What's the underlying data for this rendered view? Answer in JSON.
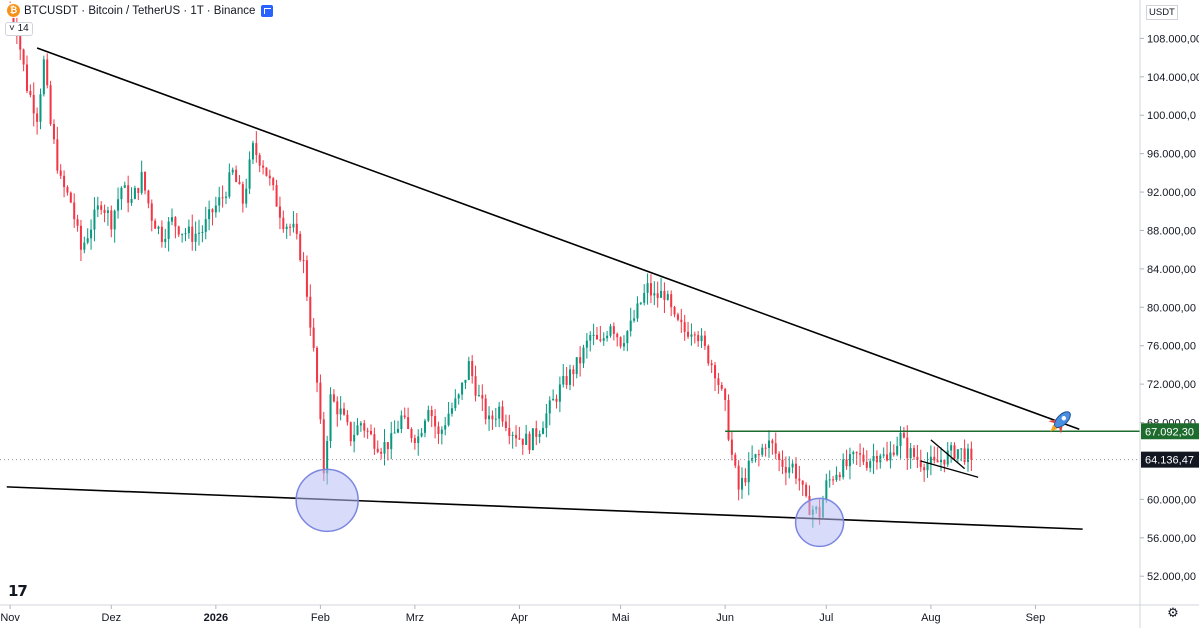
{
  "header": {
    "symbol": "BTCUSDT · Bitcoin / TetherUS · 1T · Binance",
    "indicator_toggle": "˅ 14",
    "currency": "USDT"
  },
  "colors": {
    "up": "#089981",
    "down": "#f23645",
    "trendline": "#000000",
    "resistance": "#1e6b2e",
    "highlight_fill": "#b8c0f5",
    "highlight_stroke": "#7b86e0",
    "last_price_tag": "#131722",
    "resistance_tag": "#1e6b2e"
  },
  "chart_data": {
    "type": "candlestick",
    "ylim": [
      49000,
      112000
    ],
    "y_ticks": [
      {
        "value": 108000,
        "label": "108.000,00"
      },
      {
        "value": 104000,
        "label": "104.000,00"
      },
      {
        "value": 100000,
        "label": "100.000,0"
      },
      {
        "value": 96000,
        "label": "96.000,00"
      },
      {
        "value": 92000,
        "label": "92.000,00"
      },
      {
        "value": 88000,
        "label": "88.000,00"
      },
      {
        "value": 84000,
        "label": "84.000,00"
      },
      {
        "value": 80000,
        "label": "80.000,00"
      },
      {
        "value": 76000,
        "label": "76.000,00"
      },
      {
        "value": 72000,
        "label": "72.000,00"
      },
      {
        "value": 68000,
        "label": "68.000,00"
      },
      {
        "value": 60000,
        "label": "60.000,00"
      },
      {
        "value": 56000,
        "label": "56.000,00"
      },
      {
        "value": 52000,
        "label": "52.000,00"
      }
    ],
    "x_ticks": [
      {
        "day": 0,
        "label": "Nov",
        "bold": false
      },
      {
        "day": 30,
        "label": "Dez",
        "bold": false
      },
      {
        "day": 61,
        "label": "2026",
        "bold": true
      },
      {
        "day": 92,
        "label": "Feb",
        "bold": false
      },
      {
        "day": 120,
        "label": "Mrz",
        "bold": false
      },
      {
        "day": 151,
        "label": "Apr",
        "bold": false
      },
      {
        "day": 181,
        "label": "Mai",
        "bold": false
      },
      {
        "day": 212,
        "label": "Jun",
        "bold": false
      },
      {
        "day": 242,
        "label": "Jul",
        "bold": false
      },
      {
        "day": 273,
        "label": "Aug",
        "bold": false
      },
      {
        "day": 304,
        "label": "Sep",
        "bold": false
      }
    ],
    "x_range_days": [
      -3,
      335
    ],
    "price_path": [
      [
        0,
        110500
      ],
      [
        2,
        109000
      ],
      [
        5,
        103000
      ],
      [
        8,
        100000
      ],
      [
        10,
        105500
      ],
      [
        12,
        99000
      ],
      [
        15,
        93000
      ],
      [
        18,
        91000
      ],
      [
        21,
        86000
      ],
      [
        24,
        88500
      ],
      [
        27,
        91000
      ],
      [
        30,
        89000
      ],
      [
        33,
        92500
      ],
      [
        36,
        91000
      ],
      [
        39,
        93500
      ],
      [
        42,
        89500
      ],
      [
        45,
        87500
      ],
      [
        48,
        89000
      ],
      [
        51,
        88000
      ],
      [
        54,
        87500
      ],
      [
        57,
        88000
      ],
      [
        60,
        90000
      ],
      [
        63,
        91500
      ],
      [
        66,
        94000
      ],
      [
        69,
        91000
      ],
      [
        72,
        96500
      ],
      [
        75,
        95000
      ],
      [
        78,
        92000
      ],
      [
        81,
        89000
      ],
      [
        84,
        88000
      ],
      [
        87,
        84500
      ],
      [
        89,
        78500
      ],
      [
        91,
        72000
      ],
      [
        93,
        63000
      ],
      [
        95,
        70500
      ],
      [
        98,
        69000
      ],
      [
        101,
        66500
      ],
      [
        104,
        68000
      ],
      [
        107,
        66500
      ],
      [
        110,
        65500
      ],
      [
        113,
        66000
      ],
      [
        116,
        68500
      ],
      [
        118,
        67000
      ],
      [
        121,
        66500
      ],
      [
        124,
        70000
      ],
      [
        127,
        66500
      ],
      [
        130,
        69000
      ],
      [
        133,
        70500
      ],
      [
        136,
        74000
      ],
      [
        139,
        70500
      ],
      [
        142,
        68000
      ],
      [
        145,
        69500
      ],
      [
        148,
        67500
      ],
      [
        151,
        66500
      ],
      [
        154,
        66000
      ],
      [
        157,
        67500
      ],
      [
        160,
        69500
      ],
      [
        163,
        71500
      ],
      [
        166,
        73000
      ],
      [
        169,
        74500
      ],
      [
        172,
        77000
      ],
      [
        175,
        76000
      ],
      [
        178,
        78500
      ],
      [
        181,
        76500
      ],
      [
        184,
        78000
      ],
      [
        187,
        80500
      ],
      [
        189,
        82000
      ],
      [
        191,
        81000
      ],
      [
        194,
        81500
      ],
      [
        197,
        78500
      ],
      [
        200,
        77500
      ],
      [
        203,
        78000
      ],
      [
        206,
        75500
      ],
      [
        209,
        73500
      ],
      [
        212,
        69500
      ],
      [
        214,
        64500
      ],
      [
        216,
        61000
      ],
      [
        218,
        62500
      ],
      [
        220,
        64000
      ],
      [
        222,
        64500
      ],
      [
        224,
        66000
      ],
      [
        226,
        65500
      ],
      [
        228,
        64000
      ],
      [
        230,
        63500
      ],
      [
        232,
        63500
      ],
      [
        234,
        62000
      ],
      [
        236,
        59500
      ],
      [
        238,
        59000
      ],
      [
        240,
        58500
      ],
      [
        242,
        61500
      ],
      [
        245,
        63000
      ],
      [
        248,
        63500
      ],
      [
        251,
        64500
      ],
      [
        254,
        64000
      ],
      [
        256,
        64500
      ],
      [
        258,
        65000
      ],
      [
        260,
        63800
      ],
      [
        262,
        65500
      ],
      [
        264,
        66500
      ],
      [
        266,
        65000
      ],
      [
        268,
        64500
      ],
      [
        270,
        64000
      ],
      [
        272,
        63800
      ],
      [
        274,
        63500
      ],
      [
        276,
        64200
      ],
      [
        279,
        64800
      ],
      [
        281,
        65200
      ],
      [
        283,
        64700
      ],
      [
        285,
        64136
      ]
    ],
    "trendlines": [
      {
        "from": [
          8,
          107000
        ],
        "to": [
          317,
          67300
        ],
        "label": "upper-descending-trendline"
      },
      {
        "from": [
          -1,
          61300
        ],
        "to": [
          318,
          56900
        ],
        "label": "lower-support-trendline"
      },
      {
        "from": [
          273,
          66200
        ],
        "to": [
          283,
          63200
        ],
        "label": "wedge-upper"
      },
      {
        "from": [
          270,
          64000
        ],
        "to": [
          287,
          62300
        ],
        "label": "wedge-lower"
      }
    ],
    "resistance_level": {
      "value": 67092.3,
      "from_day": 212,
      "label": "67.092,30"
    },
    "last_price": {
      "value": 64136.47,
      "label": "64.136,47"
    },
    "highlights": [
      {
        "day": 94,
        "value": 59900
      },
      {
        "day": 240,
        "value": 57600
      }
    ],
    "annotation_icon": "rocket-icon"
  },
  "footer": {
    "logo": "17",
    "settings_icon": "gear-icon"
  }
}
